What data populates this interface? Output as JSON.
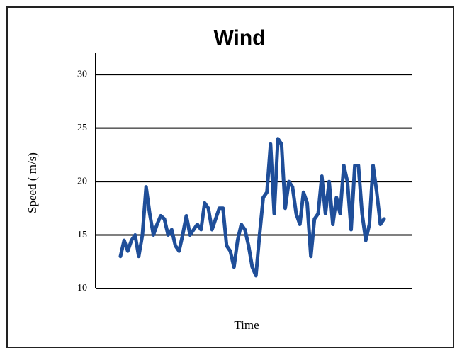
{
  "chart_data": {
    "type": "line",
    "title": "Wind",
    "y_label": "Speed ( m/s)",
    "x_label": "Time",
    "series": [
      {
        "name": "Wind",
        "color": "#1f4e99",
        "values": [
          13,
          14.5,
          13.5,
          14.5,
          15,
          13,
          15,
          19.5,
          17,
          15,
          16,
          16.8,
          16.5,
          15,
          15.5,
          14,
          13.5,
          15,
          16.8,
          15,
          15.5,
          16,
          15.5,
          18,
          17.5,
          15.5,
          16.5,
          17.5,
          17.5,
          14,
          13.5,
          12,
          14.5,
          16,
          15.5,
          14,
          12,
          11.2,
          15,
          18.5,
          19,
          23.5,
          17,
          24,
          23.5,
          17.5,
          20,
          19.5,
          17,
          16,
          19,
          18,
          13,
          16.5,
          17,
          20.5,
          17,
          20,
          16,
          18.5,
          17,
          21.5,
          20,
          15.5,
          21.5,
          21.5,
          17,
          14.5,
          16,
          21.5,
          19,
          16,
          16.5
        ]
      }
    ],
    "ylim": [
      10,
      32
    ],
    "yticks": [
      10,
      15,
      20,
      25,
      30
    ],
    "grid": true
  }
}
